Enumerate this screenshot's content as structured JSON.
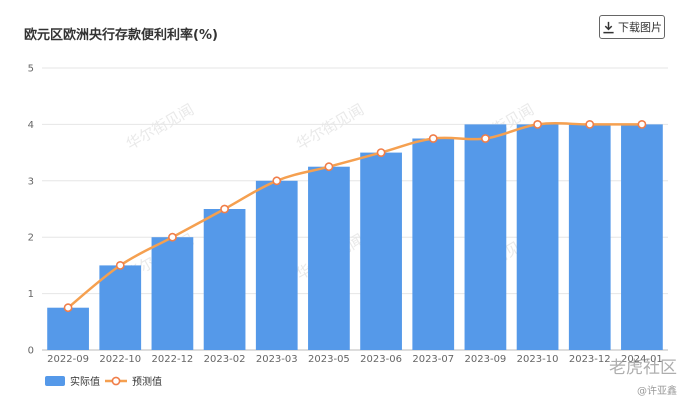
{
  "title": "欧元区欧洲央行存款便利利率(%)",
  "download_label": "下载图片",
  "watermark": "华尔街见闻",
  "corner_brand": "老虎社区",
  "corner_user": "@许亚鑫",
  "chart_data": {
    "type": "bar",
    "categories": [
      "2022-09",
      "2022-10",
      "2022-12",
      "2023-02",
      "2023-03",
      "2023-05",
      "2023-06",
      "2023-07",
      "2023-09",
      "2023-10",
      "2023-12",
      "2024-01"
    ],
    "series": [
      {
        "name": "实际值",
        "type": "bar",
        "values": [
          0.75,
          1.5,
          2.0,
          2.5,
          3.0,
          3.25,
          3.5,
          3.75,
          4.0,
          4.0,
          4.0,
          4.0
        ],
        "color": "#5599e9"
      },
      {
        "name": "预测值",
        "type": "line",
        "values": [
          0.75,
          1.5,
          2.0,
          2.5,
          3.0,
          3.25,
          3.5,
          3.75,
          3.75,
          4.0,
          4.0,
          4.0
        ],
        "color": "#f5a050"
      }
    ],
    "yticks": [
      0,
      1,
      2,
      3,
      4,
      5
    ],
    "ylim": [
      0,
      5
    ],
    "grid": true,
    "legend": "bottom-left"
  }
}
